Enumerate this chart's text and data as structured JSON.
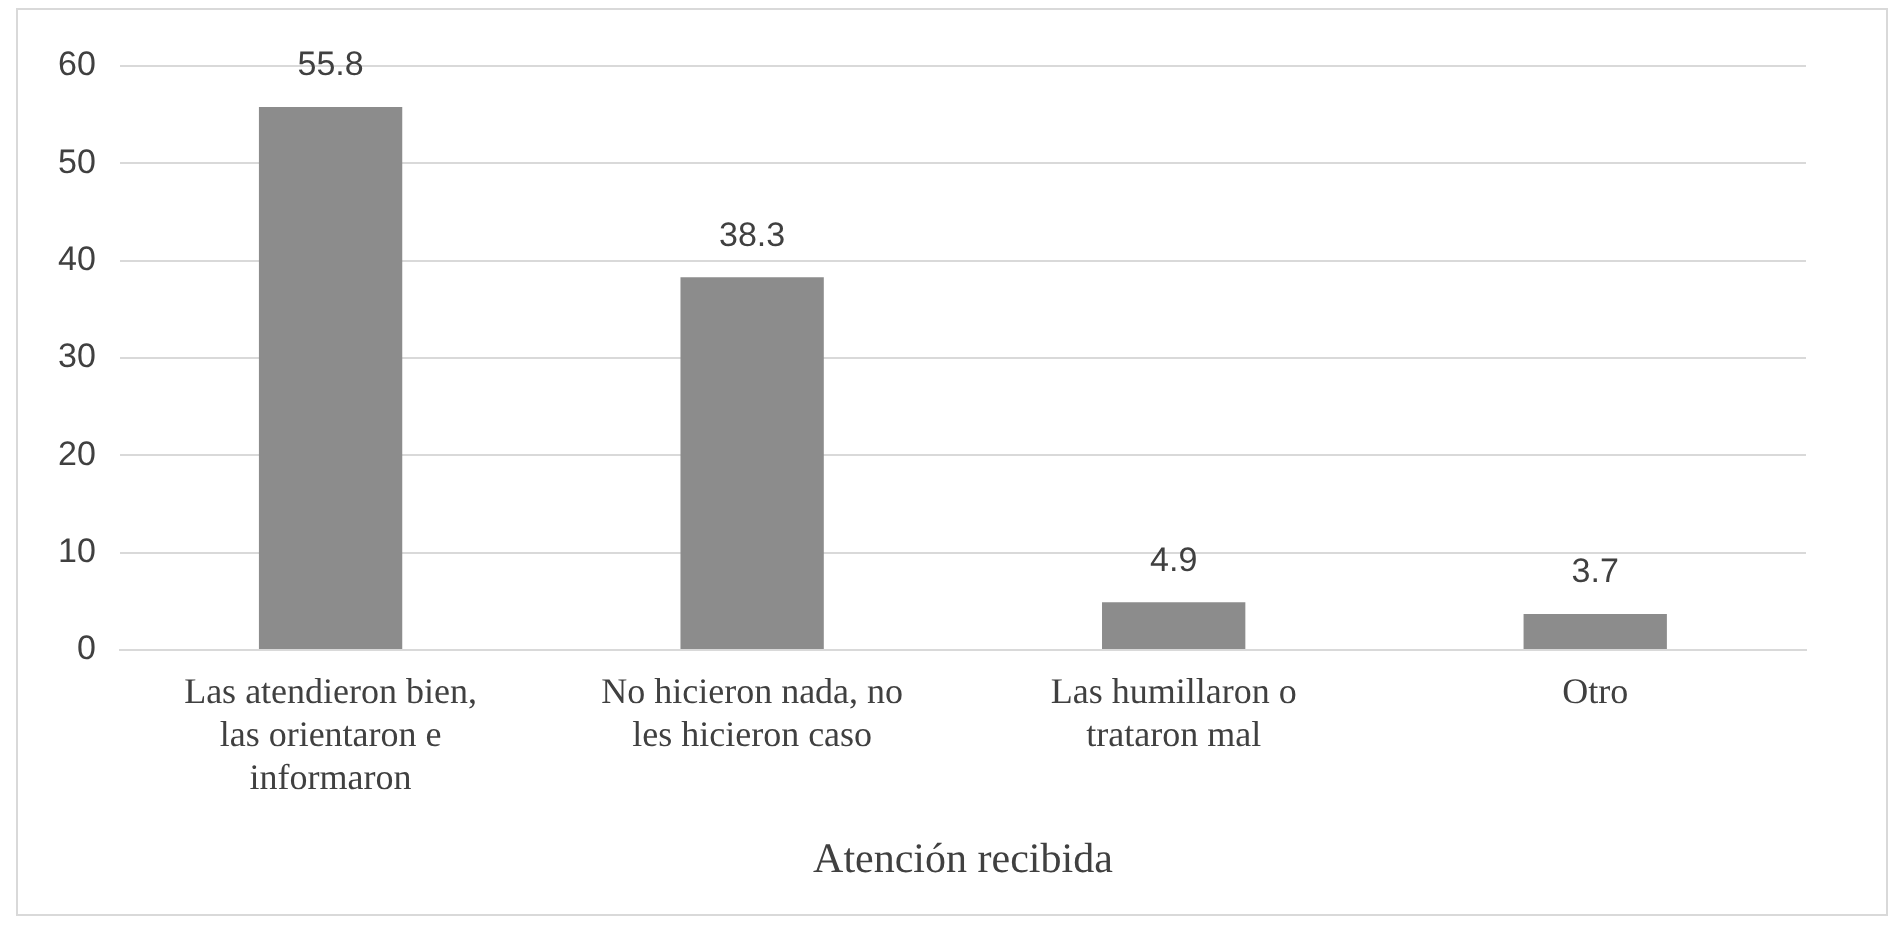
{
  "chart_data": {
    "type": "bar",
    "xlabel": "Atención recibida",
    "categories": [
      "Las atendieron bien, las orientaron e informaron",
      "No hicieron nada, no les hicieron caso",
      "Las humillaron o trataron mal",
      "Otro"
    ],
    "values": [
      55.8,
      38.3,
      4.9,
      3.7
    ],
    "color": "#8c8c8c",
    "ylim": [
      0,
      60
    ],
    "yticks": [
      0,
      10,
      20,
      30,
      40,
      50,
      60
    ],
    "grid": "y",
    "legend": false,
    "data_labels": true
  }
}
